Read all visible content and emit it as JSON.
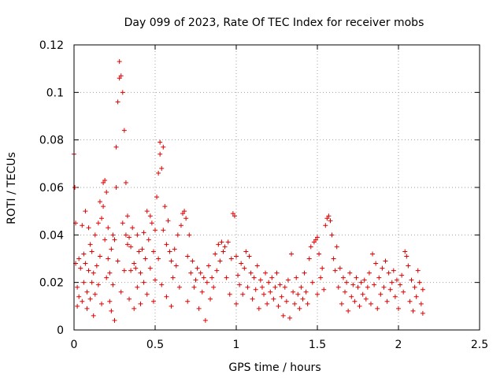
{
  "chart_data": {
    "type": "scatter",
    "title": "Day 099 of 2023, Rate Of TEC Index for receiver mobs",
    "xlabel": "GPS time / hours",
    "ylabel": "ROTI / TECUs",
    "xlim": [
      0,
      2.5
    ],
    "ylim": [
      0,
      0.12
    ],
    "x_ticks": [
      0,
      0.5,
      1,
      1.5,
      2,
      2.5
    ],
    "x_tick_labels": [
      "0",
      "0.5",
      "1",
      "1.5",
      "2",
      "2.5"
    ],
    "y_ticks": [
      0,
      0.02,
      0.04,
      0.06,
      0.08,
      0.1,
      0.12
    ],
    "y_tick_labels": [
      "0",
      "0.02",
      "0.04",
      "0.06",
      "0.08",
      "0.1",
      "0.12"
    ],
    "grid": true,
    "marker": "+",
    "color": "#e00000",
    "series": [
      {
        "points": [
          [
            0.0,
            0.074
          ],
          [
            0.005,
            0.06
          ],
          [
            0.01,
            0.045
          ],
          [
            0.01,
            0.028
          ],
          [
            0.02,
            0.018
          ],
          [
            0.02,
            0.01
          ],
          [
            0.03,
            0.03
          ],
          [
            0.03,
            0.014
          ],
          [
            0.04,
            0.026
          ],
          [
            0.05,
            0.044
          ],
          [
            0.05,
            0.012
          ],
          [
            0.06,
            0.032
          ],
          [
            0.06,
            0.02
          ],
          [
            0.07,
            0.05
          ],
          [
            0.07,
            0.028
          ],
          [
            0.08,
            0.016
          ],
          [
            0.08,
            0.009
          ],
          [
            0.09,
            0.043
          ],
          [
            0.09,
            0.025
          ],
          [
            0.1,
            0.036
          ],
          [
            0.1,
            0.013
          ],
          [
            0.11,
            0.033
          ],
          [
            0.11,
            0.02
          ],
          [
            0.12,
            0.024
          ],
          [
            0.12,
            0.006
          ],
          [
            0.13,
            0.04
          ],
          [
            0.13,
            0.015
          ],
          [
            0.14,
            0.027
          ],
          [
            0.15,
            0.045
          ],
          [
            0.15,
            0.019
          ],
          [
            0.16,
            0.054
          ],
          [
            0.16,
            0.031
          ],
          [
            0.17,
            0.047
          ],
          [
            0.17,
            0.011
          ],
          [
            0.18,
            0.062
          ],
          [
            0.18,
            0.052
          ],
          [
            0.19,
            0.063
          ],
          [
            0.19,
            0.038
          ],
          [
            0.2,
            0.058
          ],
          [
            0.2,
            0.022
          ],
          [
            0.21,
            0.043
          ],
          [
            0.21,
            0.03
          ],
          [
            0.22,
            0.024
          ],
          [
            0.22,
            0.012
          ],
          [
            0.23,
            0.034
          ],
          [
            0.23,
            0.008
          ],
          [
            0.24,
            0.04
          ],
          [
            0.24,
            0.019
          ],
          [
            0.25,
            0.038
          ],
          [
            0.25,
            0.004
          ],
          [
            0.26,
            0.077
          ],
          [
            0.26,
            0.06
          ],
          [
            0.27,
            0.096
          ],
          [
            0.27,
            0.029
          ],
          [
            0.28,
            0.106
          ],
          [
            0.28,
            0.113
          ],
          [
            0.29,
            0.107
          ],
          [
            0.29,
            0.016
          ],
          [
            0.3,
            0.1
          ],
          [
            0.3,
            0.045
          ],
          [
            0.31,
            0.084
          ],
          [
            0.31,
            0.025
          ],
          [
            0.32,
            0.062
          ],
          [
            0.32,
            0.04
          ],
          [
            0.33,
            0.048
          ],
          [
            0.33,
            0.036
          ],
          [
            0.34,
            0.039
          ],
          [
            0.34,
            0.013
          ],
          [
            0.35,
            0.025
          ],
          [
            0.35,
            0.035
          ],
          [
            0.36,
            0.043
          ],
          [
            0.37,
            0.028
          ],
          [
            0.37,
            0.009
          ],
          [
            0.38,
            0.026
          ],
          [
            0.39,
            0.04
          ],
          [
            0.39,
            0.018
          ],
          [
            0.4,
            0.033
          ],
          [
            0.41,
            0.024
          ],
          [
            0.41,
            0.011
          ],
          [
            0.42,
            0.034
          ],
          [
            0.43,
            0.041
          ],
          [
            0.43,
            0.02
          ],
          [
            0.44,
            0.03
          ],
          [
            0.45,
            0.05
          ],
          [
            0.45,
            0.015
          ],
          [
            0.46,
            0.038
          ],
          [
            0.47,
            0.048
          ],
          [
            0.47,
            0.026
          ],
          [
            0.48,
            0.045
          ],
          [
            0.49,
            0.033
          ],
          [
            0.49,
            0.012
          ],
          [
            0.5,
            0.042
          ],
          [
            0.5,
            0.021
          ],
          [
            0.51,
            0.056
          ],
          [
            0.52,
            0.066
          ],
          [
            0.52,
            0.03
          ],
          [
            0.53,
            0.074
          ],
          [
            0.53,
            0.079
          ],
          [
            0.54,
            0.068
          ],
          [
            0.54,
            0.019
          ],
          [
            0.55,
            0.077
          ],
          [
            0.55,
            0.042
          ],
          [
            0.56,
            0.052
          ],
          [
            0.57,
            0.036
          ],
          [
            0.57,
            0.014
          ],
          [
            0.58,
            0.046
          ],
          [
            0.59,
            0.033
          ],
          [
            0.6,
            0.029
          ],
          [
            0.6,
            0.01
          ],
          [
            0.61,
            0.022
          ],
          [
            0.62,
            0.034
          ],
          [
            0.63,
            0.027
          ],
          [
            0.64,
            0.04
          ],
          [
            0.65,
            0.018
          ],
          [
            0.66,
            0.044
          ],
          [
            0.67,
            0.049
          ],
          [
            0.68,
            0.05
          ],
          [
            0.69,
            0.047
          ],
          [
            0.7,
            0.031
          ],
          [
            0.7,
            0.012
          ],
          [
            0.71,
            0.04
          ],
          [
            0.72,
            0.024
          ],
          [
            0.73,
            0.029
          ],
          [
            0.74,
            0.018
          ],
          [
            0.75,
            0.021
          ],
          [
            0.76,
            0.026
          ],
          [
            0.77,
            0.009
          ],
          [
            0.78,
            0.024
          ],
          [
            0.79,
            0.016
          ],
          [
            0.8,
            0.022
          ],
          [
            0.81,
            0.004
          ],
          [
            0.82,
            0.02
          ],
          [
            0.83,
            0.027
          ],
          [
            0.84,
            0.013
          ],
          [
            0.85,
            0.022
          ],
          [
            0.86,
            0.018
          ],
          [
            0.87,
            0.032
          ],
          [
            0.88,
            0.025
          ],
          [
            0.89,
            0.036
          ],
          [
            0.9,
            0.029
          ],
          [
            0.91,
            0.037
          ],
          [
            0.92,
            0.033
          ],
          [
            0.93,
            0.035
          ],
          [
            0.94,
            0.022
          ],
          [
            0.95,
            0.037
          ],
          [
            0.96,
            0.015
          ],
          [
            0.97,
            0.03
          ],
          [
            0.98,
            0.049
          ],
          [
            0.99,
            0.048
          ],
          [
            1.0,
            0.031
          ],
          [
            1.0,
            0.011
          ],
          [
            1.01,
            0.023
          ],
          [
            1.02,
            0.019
          ],
          [
            1.03,
            0.028
          ],
          [
            1.04,
            0.015
          ],
          [
            1.05,
            0.026
          ],
          [
            1.06,
            0.033
          ],
          [
            1.07,
            0.018
          ],
          [
            1.08,
            0.031
          ],
          [
            1.09,
            0.024
          ],
          [
            1.1,
            0.013
          ],
          [
            1.11,
            0.022
          ],
          [
            1.12,
            0.017
          ],
          [
            1.13,
            0.027
          ],
          [
            1.14,
            0.009
          ],
          [
            1.15,
            0.021
          ],
          [
            1.16,
            0.018
          ],
          [
            1.17,
            0.015
          ],
          [
            1.18,
            0.024
          ],
          [
            1.19,
            0.011
          ],
          [
            1.2,
            0.02
          ],
          [
            1.21,
            0.016
          ],
          [
            1.22,
            0.022
          ],
          [
            1.23,
            0.013
          ],
          [
            1.24,
            0.018
          ],
          [
            1.25,
            0.024
          ],
          [
            1.26,
            0.01
          ],
          [
            1.27,
            0.019
          ],
          [
            1.28,
            0.014
          ],
          [
            1.29,
            0.006
          ],
          [
            1.3,
            0.018
          ],
          [
            1.31,
            0.012
          ],
          [
            1.32,
            0.021
          ],
          [
            1.33,
            0.005
          ],
          [
            1.34,
            0.032
          ],
          [
            1.35,
            0.016
          ],
          [
            1.36,
            0.011
          ],
          [
            1.37,
            0.022
          ],
          [
            1.38,
            0.015
          ],
          [
            1.39,
            0.009
          ],
          [
            1.4,
            0.018
          ],
          [
            1.41,
            0.013
          ],
          [
            1.42,
            0.024
          ],
          [
            1.43,
            0.016
          ],
          [
            1.44,
            0.011
          ],
          [
            1.45,
            0.03
          ],
          [
            1.46,
            0.035
          ],
          [
            1.47,
            0.02
          ],
          [
            1.48,
            0.037
          ],
          [
            1.49,
            0.038
          ],
          [
            1.5,
            0.039
          ],
          [
            1.5,
            0.015
          ],
          [
            1.51,
            0.032
          ],
          [
            1.52,
            0.022
          ],
          [
            1.53,
            0.026
          ],
          [
            1.54,
            0.017
          ],
          [
            1.55,
            0.044
          ],
          [
            1.56,
            0.047
          ],
          [
            1.57,
            0.048
          ],
          [
            1.58,
            0.046
          ],
          [
            1.59,
            0.04
          ],
          [
            1.6,
            0.03
          ],
          [
            1.61,
            0.025
          ],
          [
            1.62,
            0.035
          ],
          [
            1.63,
            0.018
          ],
          [
            1.64,
            0.026
          ],
          [
            1.65,
            0.011
          ],
          [
            1.66,
            0.022
          ],
          [
            1.67,
            0.016
          ],
          [
            1.68,
            0.02
          ],
          [
            1.69,
            0.008
          ],
          [
            1.7,
            0.024
          ],
          [
            1.71,
            0.014
          ],
          [
            1.72,
            0.019
          ],
          [
            1.73,
            0.012
          ],
          [
            1.74,
            0.022
          ],
          [
            1.75,
            0.018
          ],
          [
            1.76,
            0.01
          ],
          [
            1.77,
            0.02
          ],
          [
            1.78,
            0.015
          ],
          [
            1.79,
            0.021
          ],
          [
            1.8,
            0.013
          ],
          [
            1.81,
            0.018
          ],
          [
            1.82,
            0.024
          ],
          [
            1.83,
            0.011
          ],
          [
            1.84,
            0.032
          ],
          [
            1.85,
            0.019
          ],
          [
            1.86,
            0.028
          ],
          [
            1.87,
            0.009
          ],
          [
            1.88,
            0.022
          ],
          [
            1.89,
            0.015
          ],
          [
            1.9,
            0.026
          ],
          [
            1.91,
            0.018
          ],
          [
            1.92,
            0.029
          ],
          [
            1.93,
            0.012
          ],
          [
            1.94,
            0.024
          ],
          [
            1.95,
            0.017
          ],
          [
            1.96,
            0.02
          ],
          [
            1.97,
            0.025
          ],
          [
            1.98,
            0.014
          ],
          [
            1.99,
            0.021
          ],
          [
            2.0,
            0.009
          ],
          [
            2.01,
            0.019
          ],
          [
            2.02,
            0.023
          ],
          [
            2.03,
            0.016
          ],
          [
            2.04,
            0.033
          ],
          [
            2.05,
            0.031
          ],
          [
            2.06,
            0.027
          ],
          [
            2.07,
            0.012
          ],
          [
            2.08,
            0.021
          ],
          [
            2.09,
            0.008
          ],
          [
            2.1,
            0.018
          ],
          [
            2.11,
            0.014
          ],
          [
            2.12,
            0.025
          ],
          [
            2.13,
            0.02
          ],
          [
            2.14,
            0.011
          ],
          [
            2.15,
            0.017
          ],
          [
            2.15,
            0.007
          ]
        ]
      }
    ]
  }
}
